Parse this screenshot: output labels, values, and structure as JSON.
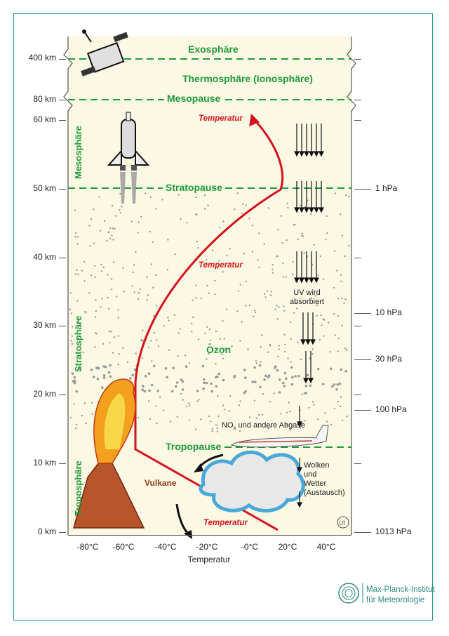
{
  "altitudes": [
    "400 km",
    "80 km",
    "60 km",
    "50 km",
    "40 km",
    "30 km",
    "20 km",
    "10 km",
    "0 km"
  ],
  "pressures": [
    "1 hPa",
    "10 hPa",
    "30 hPa",
    "100 hPa",
    "1013 hPa"
  ],
  "x_ticks": [
    "-80°C",
    "-60°C",
    "-40°C",
    "-20°C",
    "-0°C",
    "20°C",
    "40°C"
  ],
  "x_title": "Temperatur",
  "layers": {
    "exosphere": "Exosphäre",
    "thermosphere": "Thermosphäre (Ionosphäre)",
    "mesopause": "Mesopause",
    "stratopause": "Stratopause",
    "tropopause": "Tropopause",
    "mesosphere": "Mesosphäre",
    "stratosphere": "Stratosphäre",
    "troposphere": "Troposphäre",
    "ozone": "Ozon"
  },
  "temperature_labels": [
    "Temperatur",
    "Temperatur",
    "Temperatur"
  ],
  "notes": {
    "uv_line1": "UV wird",
    "uv_line2": "absorbiert",
    "nox_prefix": "NO",
    "nox_sub": "x",
    "nox_suffix": " und andere Abgase",
    "weather_1": "Wolken",
    "weather_2": "und",
    "weather_3": "Wetter",
    "weather_4": "(Austausch)",
    "volcano": "Vulkane"
  },
  "logo": {
    "line1": "Max-Planck-Institut",
    "line2": "für Meteorologie"
  },
  "colors": {
    "frame": "#2a9a8a",
    "panel": "#fbf8e4",
    "layer_green": "#1f9a3c",
    "temperature_red": "#d4121c"
  }
}
